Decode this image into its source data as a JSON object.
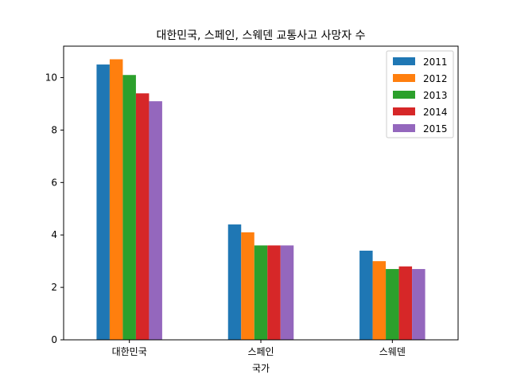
{
  "chart_data": {
    "type": "bar",
    "title": "대한민국, 스페인, 스웨덴 교통사고 사망자 수",
    "xlabel": "국가",
    "ylabel": "",
    "categories": [
      "대한민국",
      "스페인",
      "스웨덴"
    ],
    "series": [
      {
        "name": "2011",
        "color": "#1f77b4",
        "values": [
          10.5,
          4.4,
          3.4
        ]
      },
      {
        "name": "2012",
        "color": "#ff7f0e",
        "values": [
          10.7,
          4.1,
          3.0
        ]
      },
      {
        "name": "2013",
        "color": "#2ca02c",
        "values": [
          10.1,
          3.6,
          2.7
        ]
      },
      {
        "name": "2014",
        "color": "#d62728",
        "values": [
          9.4,
          3.6,
          2.8
        ]
      },
      {
        "name": "2015",
        "color": "#9467bd",
        "values": [
          9.1,
          3.6,
          2.7
        ]
      }
    ],
    "ylim": [
      0,
      11.2
    ],
    "yticks": [
      0,
      2,
      4,
      6,
      8,
      10
    ],
    "grid": false,
    "legend_position": "top-right"
  }
}
